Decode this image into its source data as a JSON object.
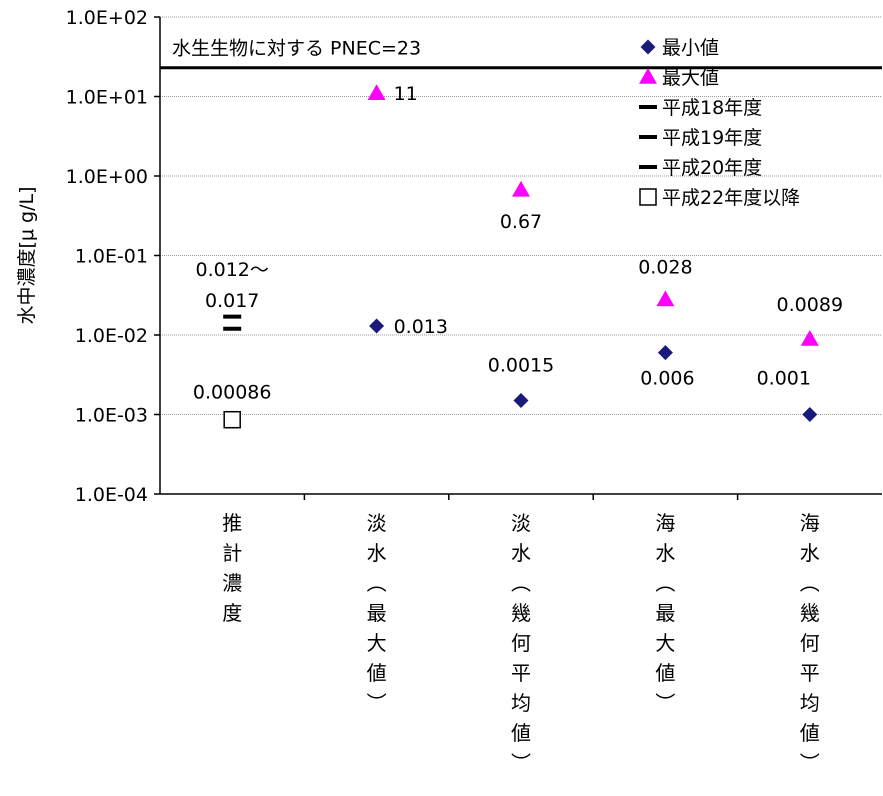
{
  "chart_data": {
    "type": "scatter",
    "y_scale": "log",
    "ylim": [
      0.0001,
      100
    ],
    "ylabel": "水中濃度[μ g/L]",
    "y_tick_labels": [
      "1.0E+02",
      "1.0E+01",
      "1.0E+00",
      "1.0E-01",
      "1.0E-02",
      "1.0E-03",
      "1.0E-04"
    ],
    "y_tick_values": [
      100,
      10,
      1,
      0.1,
      0.01,
      0.001,
      0.0001
    ],
    "grid": true,
    "categories": [
      "推計濃度",
      "淡水（最大値）",
      "淡水（幾何平均値）",
      "海水（最大値）",
      "海水（幾何平均値）"
    ],
    "category_glyphs": [
      [
        "推",
        "計",
        "濃",
        "度"
      ],
      [
        "淡",
        "水",
        "︵",
        "最",
        "大",
        "値",
        "︶"
      ],
      [
        "淡",
        "水",
        "︵",
        "幾",
        "何",
        "平",
        "均",
        "値",
        "︶"
      ],
      [
        "海",
        "水",
        "︵",
        "最",
        "大",
        "値",
        "︶"
      ],
      [
        "海",
        "水",
        "︵",
        "幾",
        "何",
        "平",
        "均",
        "値",
        "︶"
      ]
    ],
    "reference_line": {
      "label": "水生生物に対する PNEC=23",
      "value": 23
    },
    "legend_position": "top-right",
    "series": [
      {
        "name": "最小値",
        "marker": "diamond",
        "color": "#1a1a7a",
        "points": [
          {
            "category": 1,
            "value": 0.013,
            "label": "0.013"
          },
          {
            "category": 2,
            "value": 0.0015,
            "label": "0.0015"
          },
          {
            "category": 3,
            "value": 0.006,
            "label": "0.006"
          },
          {
            "category": 4,
            "value": 0.001,
            "label": "0.001"
          }
        ]
      },
      {
        "name": "最大値",
        "marker": "triangle",
        "color": "#ff00ff",
        "points": [
          {
            "category": 1,
            "value": 11,
            "label": "11"
          },
          {
            "category": 2,
            "value": 0.67,
            "label": "0.67"
          },
          {
            "category": 3,
            "value": 0.028,
            "label": "0.028"
          },
          {
            "category": 4,
            "value": 0.0089,
            "label": "0.0089"
          }
        ]
      },
      {
        "name": "平成18年度",
        "marker": "dash",
        "color": "#000000",
        "points": [
          {
            "category": 0,
            "value": 0.012
          }
        ]
      },
      {
        "name": "平成19年度",
        "marker": "dash",
        "color": "#000000",
        "points": [
          {
            "category": 0,
            "value": 0.017
          }
        ]
      },
      {
        "name": "平成20年度",
        "marker": "dash",
        "color": "#000000",
        "points": []
      },
      {
        "name": "平成22年度以降",
        "marker": "square",
        "color": "#000000",
        "points": [
          {
            "category": 0,
            "value": 0.00086,
            "label": "0.00086"
          }
        ]
      }
    ],
    "annotations": [
      {
        "category": 0,
        "lines": [
          "0.012〜",
          "0.017"
        ]
      }
    ]
  }
}
